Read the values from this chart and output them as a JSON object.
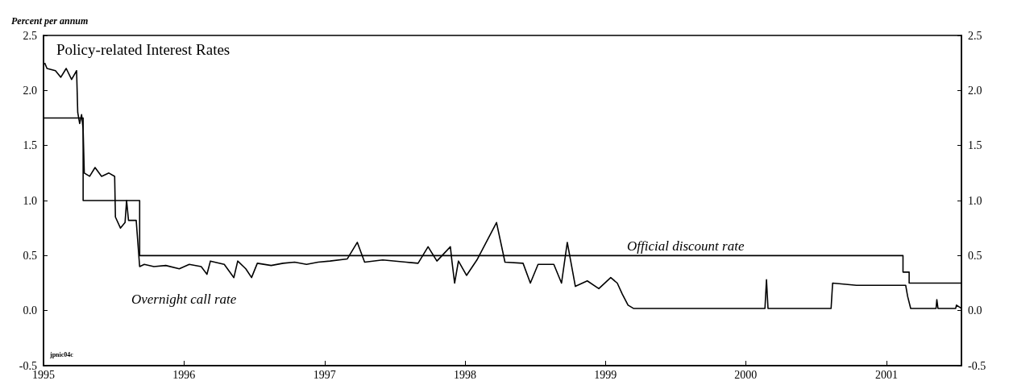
{
  "chart_data": {
    "type": "line",
    "title": "Policy-related Interest Rates",
    "ylabel": "Percent per annum",
    "annotations": [
      "jpnic04c"
    ],
    "xlim": [
      "1995-01-01",
      "2001-07-15"
    ],
    "xticks": [
      "1995",
      "1996",
      "1997",
      "1998",
      "1999",
      "2000",
      "2001"
    ],
    "ylim": [
      -0.5,
      2.5
    ],
    "yticks": [
      -0.5,
      {
        "value": 0,
        "label": "0.0"
      },
      0.5,
      {
        "value": 1,
        "label": "1.0"
      },
      1.5,
      {
        "value": 2,
        "label": "2.0"
      },
      2.5
    ],
    "y2lim": [
      -0.5,
      2.5
    ],
    "y2ticks": [
      -0.5,
      {
        "value": 0,
        "label": "0.0"
      },
      0.5,
      {
        "value": 1,
        "label": "1.0"
      },
      1.5,
      {
        "value": 2,
        "label": "2.0"
      },
      2.5
    ],
    "grid": false,
    "legend": false,
    "marker": "none",
    "line_style": "solid",
    "series": [
      {
        "name": "Official discount rate",
        "type": "step",
        "color": "#000000",
        "x": [
          "1995-01-01",
          "1995-04-14",
          "1995-09-08",
          "2001-02-13",
          "2001-03-01",
          "2001-07-15"
        ],
        "values": [
          1.75,
          1.0,
          0.5,
          0.35,
          0.25,
          0.25
        ]
      },
      {
        "name": "Overnight call rate",
        "type": "line",
        "color": "#000000",
        "x": [
          "1995-01-04",
          "1995-01-10",
          "1995-02-01",
          "1995-02-15",
          "1995-03-01",
          "1995-03-15",
          "1995-03-28",
          "1995-03-31",
          "1995-04-05",
          "1995-04-10",
          "1995-04-14",
          "1995-04-17",
          "1995-05-01",
          "1995-05-15",
          "1995-06-01",
          "1995-06-20",
          "1995-07-05",
          "1995-07-07",
          "1995-07-20",
          "1995-08-01",
          "1995-08-05",
          "1995-08-10",
          "1995-08-30",
          "1995-09-08",
          "1995-09-20",
          "1995-10-15",
          "1995-11-15",
          "1995-12-20",
          "1996-01-15",
          "1996-02-15",
          "1996-03-01",
          "1996-03-10",
          "1996-04-15",
          "1996-05-10",
          "1996-05-20",
          "1996-06-10",
          "1996-06-25",
          "1996-07-10",
          "1996-08-15",
          "1996-09-15",
          "1996-10-15",
          "1996-11-15",
          "1996-12-15",
          "1997-01-15",
          "1997-03-01",
          "1997-03-27",
          "1997-04-15",
          "1997-06-01",
          "1997-08-01",
          "1997-09-01",
          "1997-09-27",
          "1997-10-20",
          "1997-11-24",
          "1997-11-28",
          "1997-12-05",
          "1997-12-15",
          "1998-01-05",
          "1998-02-01",
          "1998-03-24",
          "1998-04-15",
          "1998-06-01",
          "1998-06-20",
          "1998-07-10",
          "1998-08-20",
          "1998-09-09",
          "1998-09-24",
          "1998-10-15",
          "1998-11-15",
          "1998-12-15",
          "1999-01-15",
          "1999-02-01",
          "1999-02-14",
          "1999-03-01",
          "1999-03-15",
          "1999-07-01",
          "1999-10-01",
          "2000-02-20",
          "2000-02-24",
          "2000-02-28",
          "2000-06-01",
          "2000-08-10",
          "2000-08-14",
          "2000-10-15",
          "2000-12-15",
          "2001-02-20",
          "2001-02-25",
          "2001-03-05",
          "2001-05-10",
          "2001-05-12",
          "2001-05-15",
          "2001-06-30",
          "2001-07-02",
          "2001-07-15"
        ],
        "values": [
          2.25,
          2.2,
          2.18,
          2.12,
          2.2,
          2.1,
          2.18,
          1.8,
          1.7,
          1.78,
          1.65,
          1.25,
          1.22,
          1.3,
          1.22,
          1.25,
          1.22,
          0.85,
          0.75,
          0.8,
          1.0,
          0.82,
          0.82,
          0.4,
          0.42,
          0.4,
          0.41,
          0.38,
          0.42,
          0.4,
          0.33,
          0.45,
          0.42,
          0.3,
          0.45,
          0.38,
          0.3,
          0.43,
          0.41,
          0.43,
          0.44,
          0.42,
          0.44,
          0.45,
          0.47,
          0.62,
          0.44,
          0.46,
          0.44,
          0.43,
          0.58,
          0.45,
          0.58,
          0.45,
          0.25,
          0.45,
          0.32,
          0.46,
          0.8,
          0.44,
          0.43,
          0.25,
          0.42,
          0.42,
          0.25,
          0.62,
          0.22,
          0.27,
          0.2,
          0.3,
          0.25,
          0.15,
          0.05,
          0.02,
          0.02,
          0.02,
          0.02,
          0.28,
          0.02,
          0.02,
          0.02,
          0.25,
          0.23,
          0.23,
          0.23,
          0.13,
          0.02,
          0.02,
          0.1,
          0.02,
          0.02,
          0.05,
          0.02
        ]
      }
    ]
  }
}
